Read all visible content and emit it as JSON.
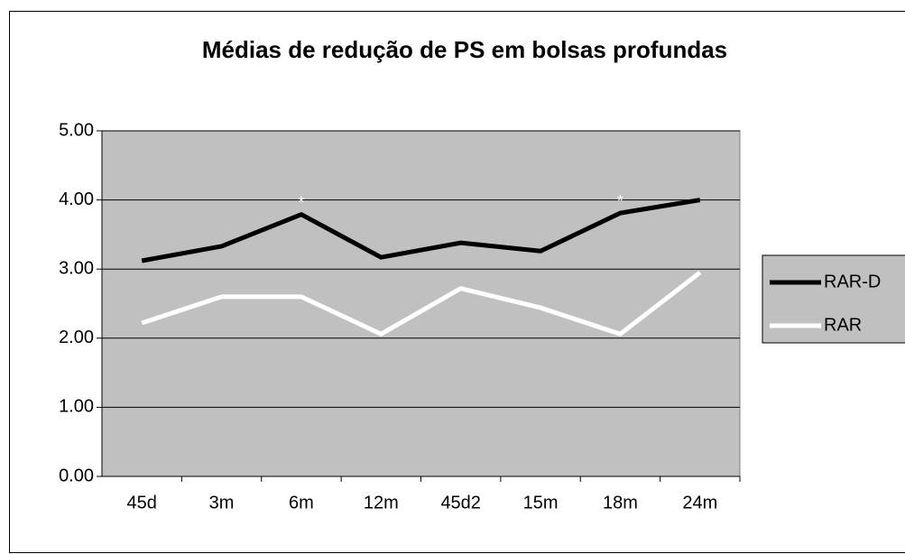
{
  "chart_data": {
    "type": "line",
    "title": "Médias de redução de PS em bolsas profundas",
    "categories": [
      "45d",
      "3m",
      "6m",
      "12m",
      "45d2",
      "15m",
      "18m",
      "24m"
    ],
    "series": [
      {
        "name": "RAR-D",
        "color": "#000000",
        "values": [
          3.12,
          3.33,
          3.79,
          3.17,
          3.38,
          3.26,
          3.81,
          4.0
        ]
      },
      {
        "name": "RAR",
        "color": "#ffffff",
        "values": [
          2.22,
          2.6,
          2.6,
          2.06,
          2.72,
          2.44,
          2.06,
          2.95
        ]
      }
    ],
    "ylim": [
      0,
      5
    ],
    "yticks": [
      {
        "value": 0,
        "label": "0.00"
      },
      {
        "value": 1,
        "label": "1.00"
      },
      {
        "value": 2,
        "label": "2.00"
      },
      {
        "value": 3,
        "label": "3.00"
      },
      {
        "value": 4,
        "label": "4.00"
      },
      {
        "value": 5,
        "label": "5.00"
      }
    ],
    "grid": true,
    "legend": "right",
    "annotations": [
      {
        "text": "*",
        "category": "6m"
      },
      {
        "text": "*",
        "category": "18m"
      }
    ]
  }
}
